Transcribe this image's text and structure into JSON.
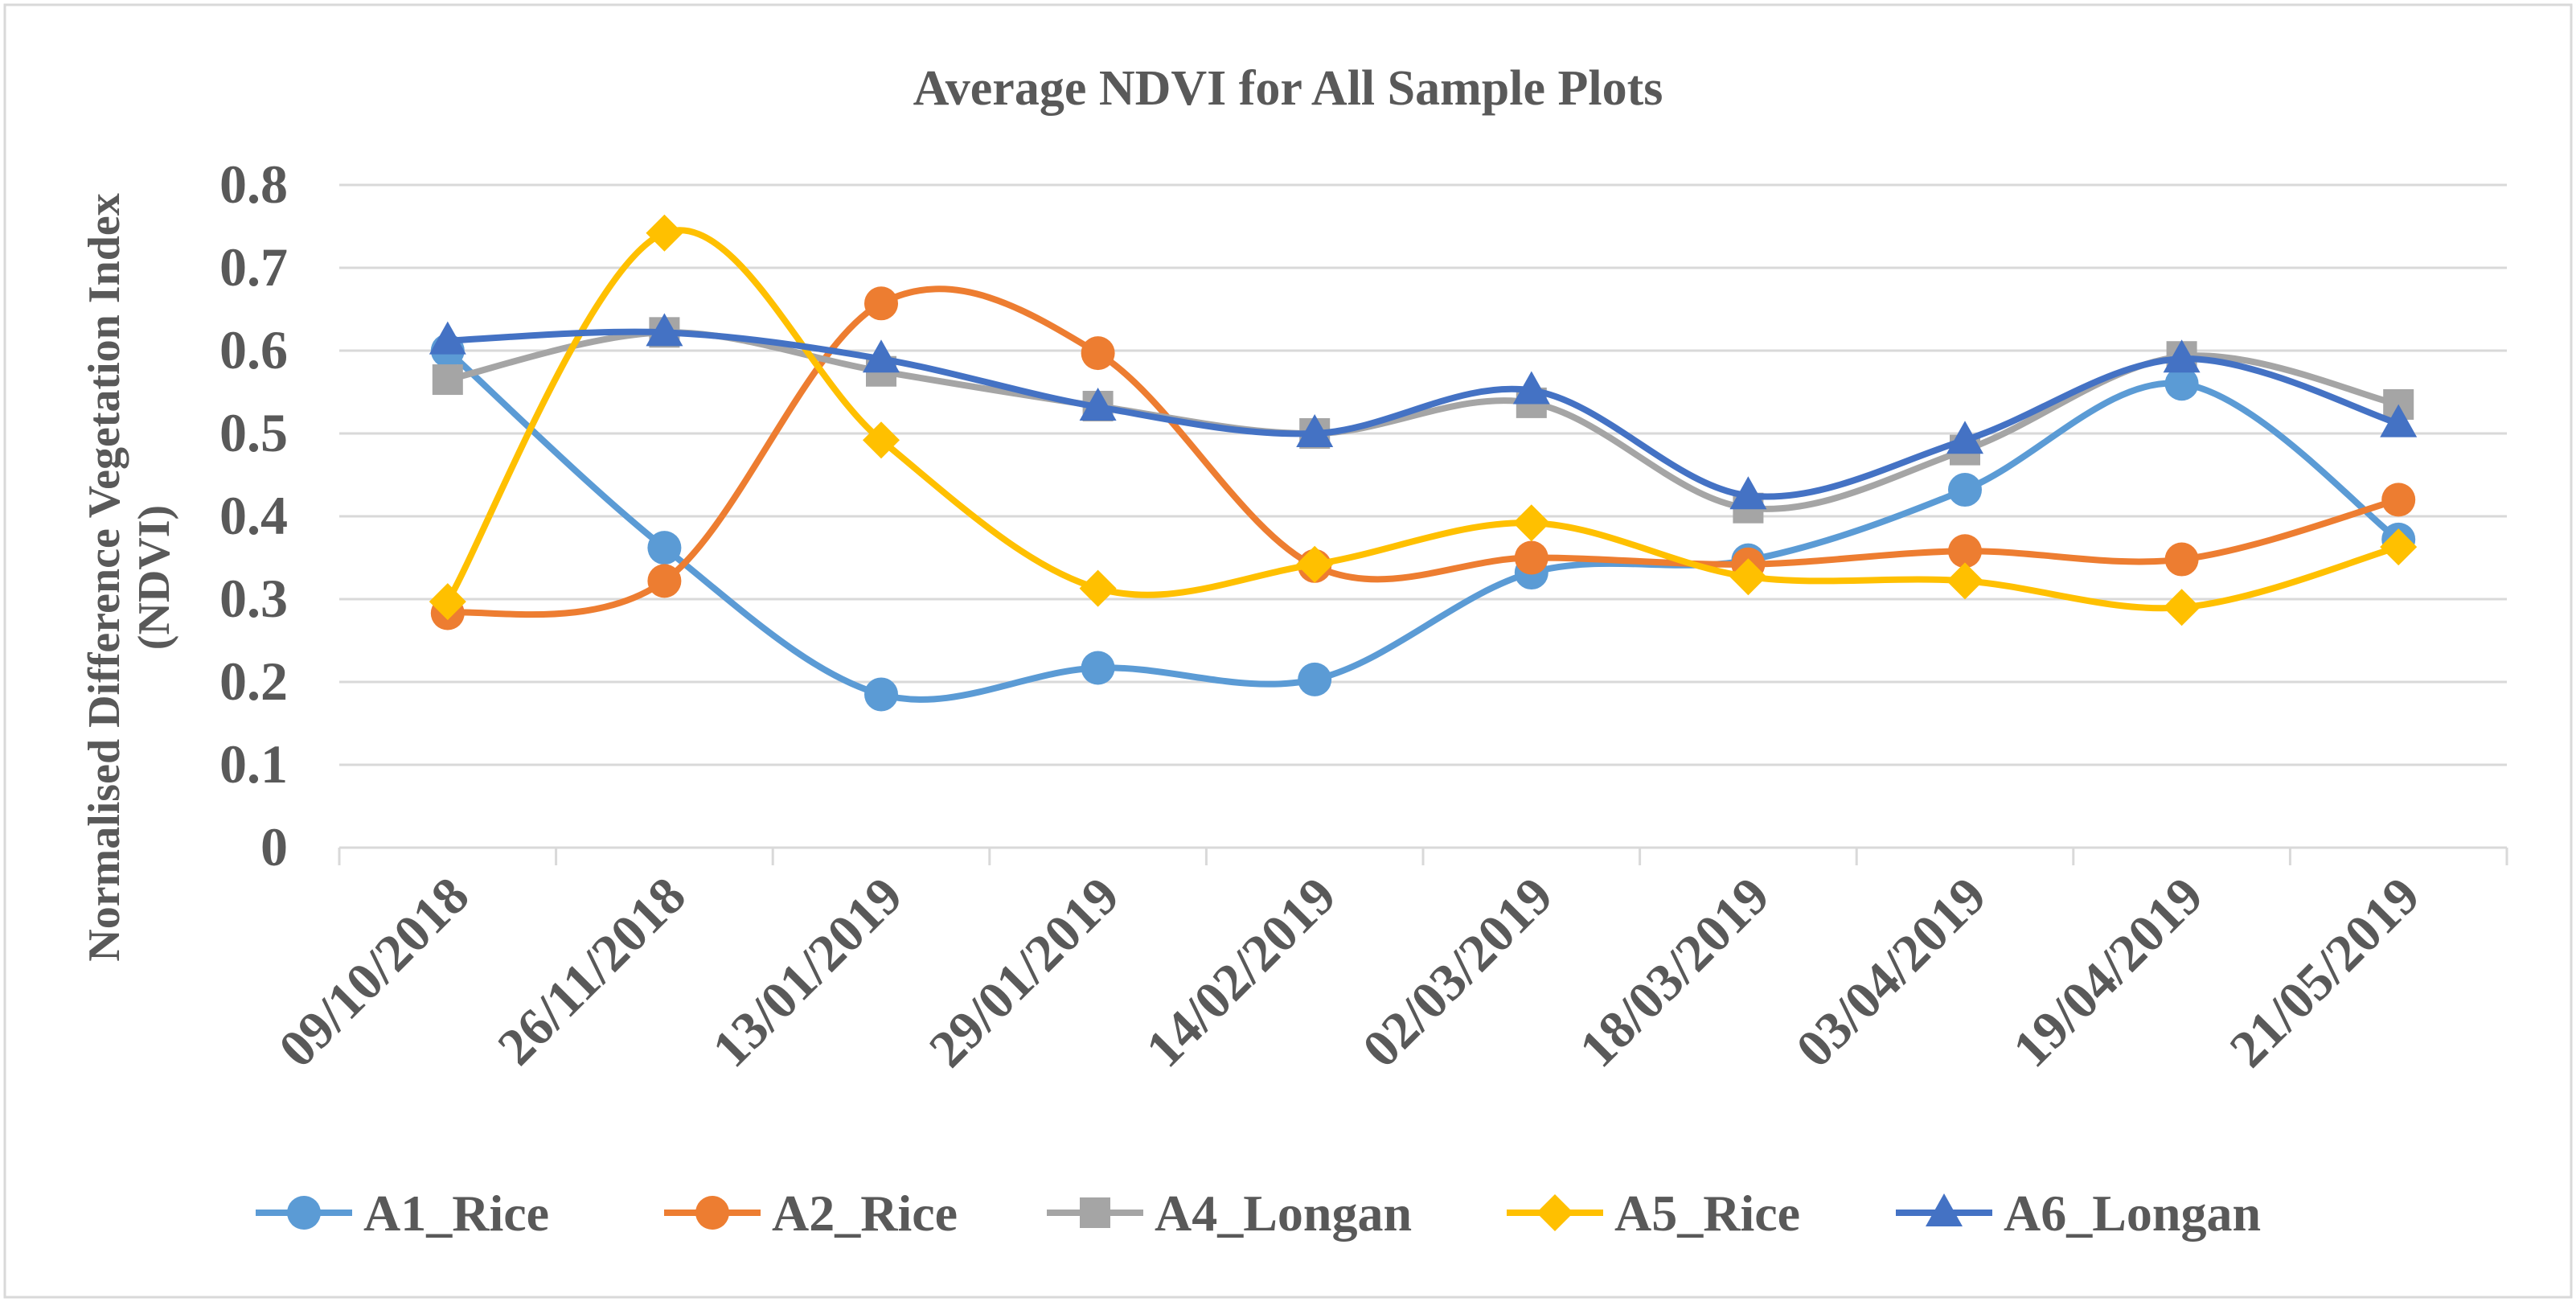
{
  "chart_data": {
    "type": "line",
    "title": "Average NDVI for All Sample Plots",
    "xlabel": "",
    "ylabel_lines": [
      "Normalised Difference Vegetation Index",
      "(NDVI)"
    ],
    "ylim": [
      0,
      0.8
    ],
    "yticks": [
      "0",
      "0.1",
      "0.2",
      "0.3",
      "0.4",
      "0.5",
      "0.6",
      "0.7",
      "0.8"
    ],
    "grid": true,
    "legend_position": "bottom",
    "categories": [
      "09/10/2018",
      "26/11/2018",
      "13/01/2019",
      "29/01/2019",
      "14/02/2019",
      "02/03/2019",
      "18/03/2019",
      "03/04/2019",
      "19/04/2019",
      "21/05/2019"
    ],
    "series": [
      {
        "name": "A1_Rice",
        "color": "#5B9BD5",
        "marker": "circle",
        "values": [
          0.6,
          0.362,
          0.185,
          0.217,
          0.203,
          0.332,
          0.347,
          0.432,
          0.56,
          0.372
        ]
      },
      {
        "name": "A2_Rice",
        "color": "#ED7D31",
        "marker": "circle",
        "values": [
          0.283,
          0.322,
          0.657,
          0.597,
          0.34,
          0.35,
          0.342,
          0.358,
          0.348,
          0.42
        ]
      },
      {
        "name": "A4_Longan",
        "color": "#A5A5A5",
        "marker": "square",
        "values": [
          0.565,
          0.622,
          0.575,
          0.533,
          0.5,
          0.537,
          0.41,
          0.48,
          0.593,
          0.535
        ]
      },
      {
        "name": "A5_Rice",
        "color": "#FFC000",
        "marker": "diamond",
        "values": [
          0.297,
          0.742,
          0.492,
          0.313,
          0.342,
          0.392,
          0.327,
          0.322,
          0.29,
          0.363
        ]
      },
      {
        "name": "A6_Longan",
        "color": "#4472C4",
        "marker": "triangle",
        "values": [
          0.612,
          0.622,
          0.59,
          0.532,
          0.5,
          0.552,
          0.425,
          0.492,
          0.59,
          0.512
        ]
      }
    ]
  }
}
